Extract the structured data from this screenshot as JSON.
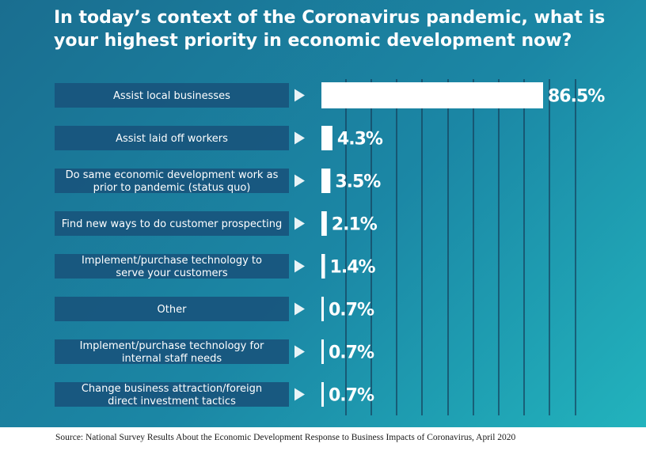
{
  "title_line1": "In today’s context of the Coronavirus pandemic, what is",
  "title_line2": "your highest priority in economic development now?",
  "source": "Source: National Survey Results About the Economic Development Response to Business Impacts of Coronavirus, April 2020",
  "colors": {
    "label_box": "#18557d",
    "bar": "#ffffff",
    "arrow": "#ffffff",
    "grid": "#16405c"
  },
  "chart_data": {
    "type": "bar",
    "orientation": "horizontal",
    "title": "In today’s context of the Coronavirus pandemic, what is your highest priority in economic development now?",
    "categories": [
      [
        "Assist local businesses"
      ],
      [
        "Assist laid off workers"
      ],
      [
        "Do same economic development work as",
        "prior to pandemic (status quo)"
      ],
      [
        "Find new ways to do customer prospecting"
      ],
      [
        "Implement/purchase technology to",
        "serve your customers"
      ],
      [
        "Other"
      ],
      [
        "Implement/purchase technology for",
        "internal staff needs"
      ],
      [
        "Change business attraction/foreign",
        "direct investment tactics"
      ]
    ],
    "values": [
      86.5,
      4.3,
      3.5,
      2.1,
      1.4,
      0.7,
      0.7,
      0.7
    ],
    "value_labels": [
      "86.5%",
      "4.3%",
      "3.5%",
      "2.1%",
      "1.4%",
      "0.7%",
      "0.7%",
      "0.7%"
    ],
    "unit": "%",
    "grid": true
  }
}
